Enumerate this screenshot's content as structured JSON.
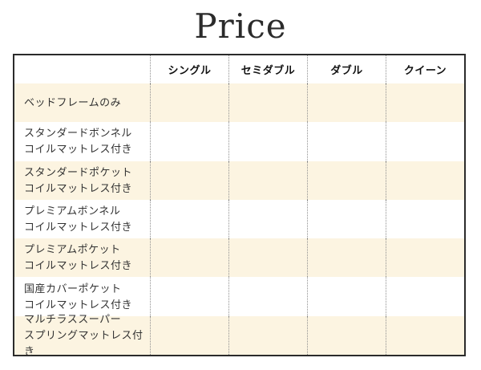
{
  "page": {
    "title": "Price"
  },
  "table": {
    "columns": [
      "シングル",
      "セミダブル",
      "ダブル",
      "クイーン"
    ],
    "rows": [
      {
        "label_lines": [
          "ベッドフレームのみ"
        ]
      },
      {
        "label_lines": [
          "スタンダードボンネル",
          "コイルマットレス付き"
        ]
      },
      {
        "label_lines": [
          "スタンダードポケット",
          "コイルマットレス付き"
        ]
      },
      {
        "label_lines": [
          "プレミアムボンネル",
          "コイルマットレス付き"
        ]
      },
      {
        "label_lines": [
          "プレミアムポケット",
          "コイルマットレス付き"
        ]
      },
      {
        "label_lines": [
          "国産カバーポケット",
          "コイルマットレス付き"
        ]
      },
      {
        "label_lines": [
          "マルチラススーパー",
          "スプリングマットレス付き"
        ]
      }
    ]
  },
  "colors": {
    "stripe": "#fcf4e1",
    "table_border": "#2b2b2b",
    "column_divider_dotted": "#8f8f8f",
    "header_text": "#111111",
    "label_text": "#333333",
    "title_text": "#2b2b2b"
  }
}
